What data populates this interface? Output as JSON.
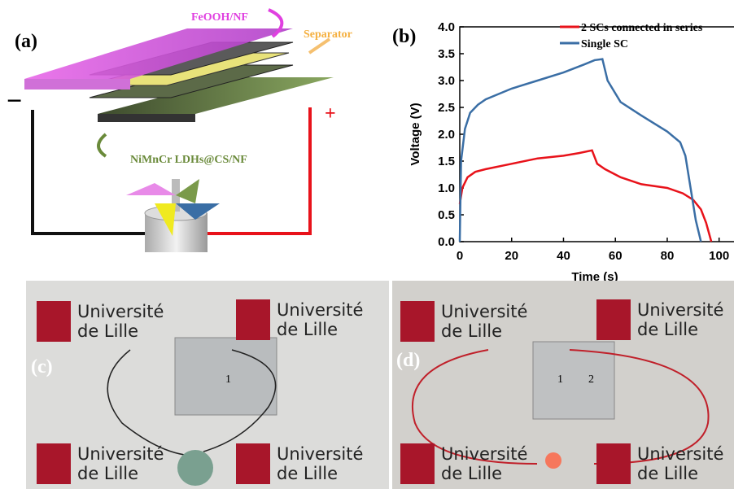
{
  "panel_a": {
    "label": "(a)",
    "top_plate": "FeOOH/NF",
    "separator": "Separator",
    "bottom_plate": "NiMnCr LDHs@CS/NF",
    "minus": "−",
    "plus": "+"
  },
  "chart_data": {
    "type": "line",
    "label": "(b)",
    "xlabel": "Time (s)",
    "ylabel": "Voltage (V)",
    "xlim": [
      0,
      107
    ],
    "xticks": [
      0,
      20,
      40,
      60,
      80,
      100
    ],
    "ylim": [
      0,
      4
    ],
    "yticks": [
      {
        "value": 0,
        "label": "0.0"
      },
      0.5,
      {
        "value": 1,
        "label": "1.0"
      },
      1.5,
      {
        "value": 2,
        "label": "2.0"
      },
      2.5,
      {
        "value": 3,
        "label": "3.0"
      },
      3.5,
      {
        "value": 4,
        "label": "4.0"
      }
    ],
    "legend": "upper right",
    "series": [
      {
        "name": "2 SCs connected in series",
        "color": "#e8121a",
        "x": [
          0,
          1,
          3,
          6,
          10,
          20,
          30,
          40,
          46,
          51,
          53,
          56,
          62,
          70,
          80,
          86,
          90,
          93,
          95,
          97
        ],
        "values": [
          0.7,
          1.0,
          1.2,
          1.3,
          1.35,
          1.45,
          1.55,
          1.6,
          1.65,
          1.7,
          1.45,
          1.35,
          1.2,
          1.07,
          1.0,
          0.9,
          0.78,
          0.6,
          0.35,
          0
        ]
      },
      {
        "name": "Single SC",
        "color": "#3a6ea5",
        "x": [
          0,
          0.5,
          2,
          4,
          7,
          10,
          20,
          30,
          40,
          48,
          52,
          55,
          57,
          62,
          70,
          80,
          85,
          87,
          89,
          91,
          92,
          93
        ],
        "values": [
          0,
          1.5,
          2.1,
          2.4,
          2.55,
          2.65,
          2.85,
          3.0,
          3.15,
          3.3,
          3.38,
          3.4,
          3.0,
          2.6,
          2.35,
          2.05,
          1.85,
          1.6,
          1.0,
          0.4,
          0.2,
          0
        ]
      }
    ]
  },
  "panel_c": {
    "label": "(c)",
    "logos": [
      [
        "Université",
        "de Lille"
      ],
      [
        "Université",
        "de Lille"
      ],
      [
        "Université",
        "de Lille"
      ],
      [
        "Université",
        "de Lille"
      ]
    ],
    "cells": [
      "1"
    ]
  },
  "panel_d": {
    "label": "(d)",
    "logos": [
      [
        "Université",
        "de Lille"
      ],
      [
        "Université",
        "de Lille"
      ],
      [
        "Université",
        "de Lille"
      ],
      [
        "Université",
        "de Lille"
      ]
    ],
    "cells": [
      "1",
      "2"
    ]
  }
}
